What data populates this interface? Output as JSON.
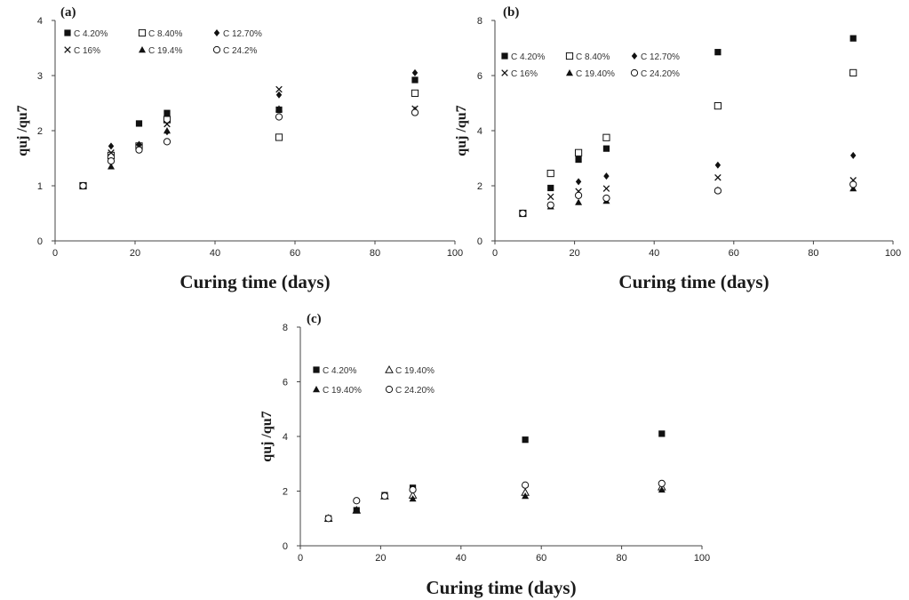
{
  "chart_data": [
    {
      "type": "scatter",
      "panel_label": "(a)",
      "xlabel": "Curing time (days)",
      "ylabel": "quj /qu7",
      "xlim": [
        0,
        100
      ],
      "ylim": [
        0,
        4
      ],
      "xticks": [
        0,
        20,
        40,
        60,
        80,
        100
      ],
      "yticks": [
        0,
        1,
        2,
        3,
        4
      ],
      "grid": false,
      "legend_columns": 3,
      "series": [
        {
          "name": "C 4.20%",
          "marker": "square",
          "x": [
            7,
            14,
            21,
            28,
            56,
            90
          ],
          "y": [
            1.0,
            1.47,
            2.13,
            2.32,
            2.38,
            2.92
          ]
        },
        {
          "name": "C 8.40%",
          "marker": "open-square",
          "x": [
            7,
            14,
            21,
            28,
            56,
            90
          ],
          "y": [
            1.0,
            1.55,
            1.72,
            2.2,
            1.88,
            2.68
          ]
        },
        {
          "name": "C 12.70%",
          "marker": "diamond",
          "x": [
            7,
            14,
            21,
            28,
            56,
            90
          ],
          "y": [
            1.0,
            1.72,
            1.75,
            1.98,
            2.65,
            3.05
          ]
        },
        {
          "name": "C 16%",
          "marker": "cross",
          "x": [
            7,
            14,
            21,
            28,
            56,
            90
          ],
          "y": [
            1.0,
            1.6,
            1.7,
            2.12,
            2.75,
            2.4
          ]
        },
        {
          "name": "C 19.4%",
          "marker": "triangle",
          "x": [
            7,
            14,
            21,
            28,
            56,
            90
          ],
          "y": [
            1.0,
            1.35,
            1.7,
            2.0,
            2.4,
            2.38
          ]
        },
        {
          "name": "C 24.2%",
          "marker": "circle",
          "x": [
            7,
            14,
            21,
            28,
            56,
            90
          ],
          "y": [
            1.0,
            1.45,
            1.65,
            1.8,
            2.25,
            2.33
          ]
        }
      ]
    },
    {
      "type": "scatter",
      "panel_label": "(b)",
      "xlabel": "Curing time (days)",
      "ylabel": "quj /qu7",
      "xlim": [
        0,
        100
      ],
      "ylim": [
        0,
        8
      ],
      "xticks": [
        0,
        20,
        40,
        60,
        80,
        100
      ],
      "yticks": [
        0,
        2,
        4,
        6,
        8
      ],
      "grid": false,
      "legend_columns": 3,
      "series": [
        {
          "name": "C 4.20%",
          "marker": "square",
          "x": [
            7,
            14,
            21,
            28,
            56,
            90
          ],
          "y": [
            1.0,
            1.92,
            2.95,
            3.35,
            6.85,
            7.35
          ]
        },
        {
          "name": "C 8.40%",
          "marker": "open-square",
          "x": [
            7,
            14,
            21,
            28,
            56,
            90
          ],
          "y": [
            1.0,
            2.45,
            3.2,
            3.75,
            4.9,
            6.1
          ]
        },
        {
          "name": "C 12.70%",
          "marker": "diamond",
          "x": [
            7,
            14,
            21,
            28,
            56,
            90
          ],
          "y": [
            1.0,
            1.3,
            2.15,
            2.35,
            2.75,
            3.1
          ]
        },
        {
          "name": "C 16%",
          "marker": "cross",
          "x": [
            7,
            14,
            21,
            28,
            56,
            90
          ],
          "y": [
            1.0,
            1.6,
            1.8,
            1.9,
            2.3,
            2.2
          ]
        },
        {
          "name": "C 19.40%",
          "marker": "triangle",
          "x": [
            7,
            14,
            21,
            28,
            56,
            90
          ],
          "y": [
            1.0,
            1.25,
            1.4,
            1.45,
            1.85,
            1.9
          ]
        },
        {
          "name": "C 24.20%",
          "marker": "circle",
          "x": [
            7,
            14,
            21,
            28,
            56,
            90
          ],
          "y": [
            1.0,
            1.3,
            1.65,
            1.55,
            1.82,
            2.05
          ]
        }
      ]
    },
    {
      "type": "scatter",
      "panel_label": "(c)",
      "xlabel": "Curing time (days)",
      "ylabel": "quj /qu7",
      "xlim": [
        0,
        100
      ],
      "ylim": [
        0,
        8
      ],
      "xticks": [
        0,
        20,
        40,
        60,
        80,
        100
      ],
      "yticks": [
        0,
        2,
        4,
        6,
        8
      ],
      "grid": false,
      "legend_columns": 2,
      "series": [
        {
          "name": "C 4.20%",
          "marker": "square",
          "x": [
            7,
            14,
            21,
            28,
            56,
            90
          ],
          "y": [
            1.0,
            1.3,
            1.85,
            2.12,
            3.88,
            4.1
          ]
        },
        {
          "name": "C 19.40%",
          "marker": "open-triangle",
          "x": [
            7,
            14,
            21,
            28,
            56,
            90
          ],
          "y": [
            1.0,
            1.3,
            1.82,
            1.85,
            1.95,
            2.15
          ]
        },
        {
          "name": "C 19.40%",
          "marker": "triangle",
          "x": [
            7,
            14,
            21,
            28,
            56,
            90
          ],
          "y": [
            1.0,
            1.3,
            1.82,
            1.72,
            1.82,
            2.05
          ]
        },
        {
          "name": "C 24.20%",
          "marker": "circle",
          "x": [
            7,
            14,
            21,
            28,
            56,
            90
          ],
          "y": [
            1.0,
            1.65,
            1.82,
            2.05,
            2.22,
            2.28
          ]
        }
      ]
    }
  ]
}
